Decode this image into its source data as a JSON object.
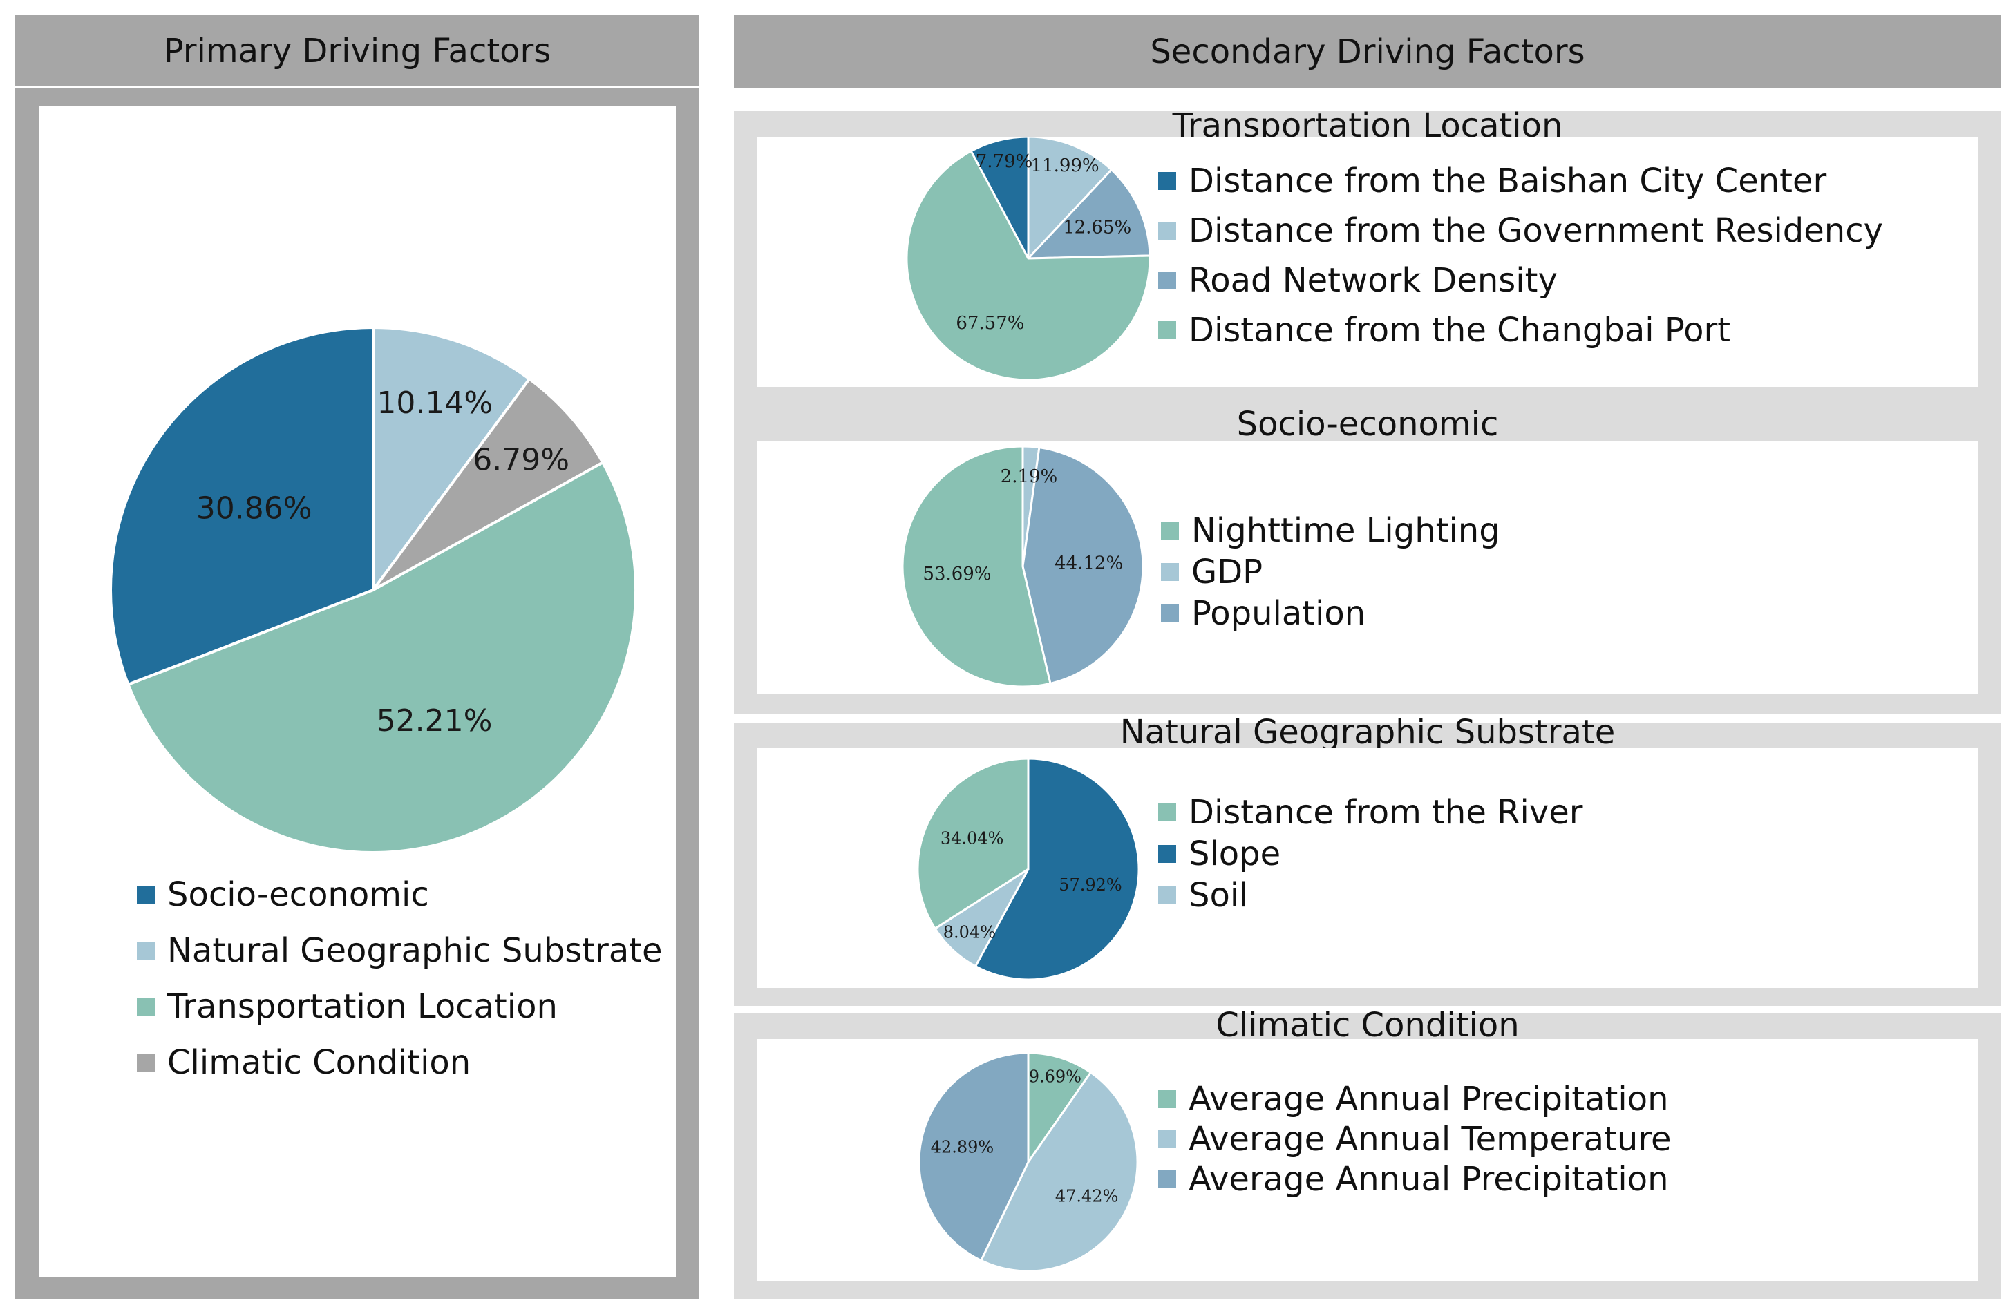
{
  "primary": {
    "title": "Primary Driving Factors",
    "legend": [
      {
        "label": "Socio-economic",
        "color": "#216e9b"
      },
      {
        "label": "Natural Geographic Substrate",
        "color": "#a6c7d6"
      },
      {
        "label": "Transportation Location",
        "color": "#89c1b3"
      },
      {
        "label": "Climatic Condition",
        "color": "#a6a6a6"
      }
    ]
  },
  "secondary": {
    "title": "Secondary Driving Factors"
  },
  "chart_data": [
    {
      "type": "pie",
      "title": "Primary Driving Factors",
      "labels": [
        "Socio-economic",
        "Natural Geographic Substrate",
        "Climatic Condition",
        "Transportation Location"
      ],
      "values": [
        30.86,
        10.14,
        6.79,
        52.21
      ],
      "value_labels": [
        "30.86%",
        "10.14%",
        "6.79%",
        "52.21%"
      ],
      "colors": [
        "#216e9b",
        "#a6c7d6",
        "#a6a6a6",
        "#89c1b3"
      ],
      "slice_order": [
        1,
        2,
        3,
        0
      ]
    },
    {
      "type": "pie",
      "title": "Transportation Location",
      "labels": [
        "Distance from the Baishan City Center",
        "Distance from the Government Residency",
        "Road Network Density",
        "Distance from the Changbai Port"
      ],
      "values": [
        7.79,
        11.99,
        12.65,
        67.57
      ],
      "value_labels": [
        "7.79%",
        "11.99%",
        "12.65%",
        "67.57%"
      ],
      "colors": [
        "#216e9b",
        "#a6c7d6",
        "#82a8c1",
        "#89c1b3"
      ],
      "slice_order": [
        1,
        2,
        3,
        0
      ]
    },
    {
      "type": "pie",
      "title": "Socio-economic",
      "labels": [
        "Nighttime Lighting",
        "GDP",
        "Population"
      ],
      "values": [
        53.69,
        2.19,
        44.12
      ],
      "value_labels": [
        "53.69%",
        "2.19%",
        "44.12%"
      ],
      "colors": [
        "#89c1b3",
        "#a6c7d6",
        "#82a8c1"
      ],
      "slice_order": [
        1,
        2,
        0
      ]
    },
    {
      "type": "pie",
      "title": "Natural Geographic Substrate",
      "labels": [
        "Distance from the River",
        "Slope",
        "Soil"
      ],
      "values": [
        34.04,
        57.92,
        8.04
      ],
      "value_labels": [
        "34.04%",
        "57.92%",
        "8.04%"
      ],
      "colors": [
        "#89c1b3",
        "#216e9b",
        "#a6c7d6"
      ],
      "slice_order": [
        1,
        2,
        0
      ]
    },
    {
      "type": "pie",
      "title": "Climatic Condition",
      "labels": [
        "Average Annual Precipitation",
        "Average Annual Temperature",
        "Average Annual Precipitation"
      ],
      "values": [
        9.69,
        47.42,
        42.89
      ],
      "value_labels": [
        "9.69%",
        "47.42%",
        "42.89%"
      ],
      "colors": [
        "#89c1b3",
        "#a6c7d6",
        "#82a8c1"
      ],
      "slice_order": [
        0,
        1,
        2
      ]
    }
  ]
}
